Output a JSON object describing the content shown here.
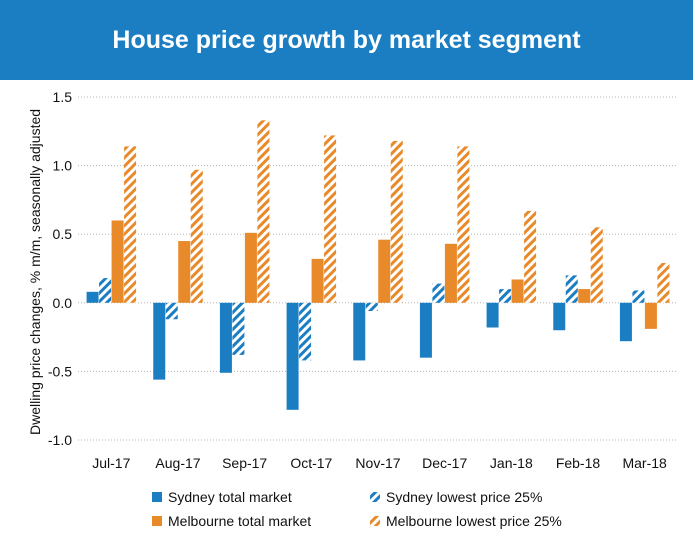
{
  "title": "House price growth by market segment",
  "colors": {
    "header_bg": "#1b7ec2",
    "sydney": "#1b7ec2",
    "melbourne": "#e8892a"
  },
  "chart_data": {
    "type": "bar",
    "title": "House price growth by market segment",
    "ylabel": "Dwelling price changes, % m/m, seasonally adjusted",
    "xlabel": "",
    "ylim": [
      -1.0,
      1.5
    ],
    "yticks": [
      "1.5",
      "1.0",
      "0.5",
      "0.0",
      "-0.5",
      "-1.0"
    ],
    "ytick_values": [
      1.5,
      1.0,
      0.5,
      0.0,
      -0.5,
      -1.0
    ],
    "grid": "horizontal dotted",
    "legend_position": "bottom",
    "categories": [
      "Jul-17",
      "Aug-17",
      "Sep-17",
      "Oct-17",
      "Nov-17",
      "Dec-17",
      "Jan-18",
      "Feb-18",
      "Mar-18"
    ],
    "series": [
      {
        "name": "Sydney total market",
        "style": "solid",
        "color": "#1b7ec2",
        "values": [
          0.08,
          -0.56,
          -0.51,
          -0.78,
          -0.42,
          -0.4,
          -0.18,
          -0.2,
          -0.28
        ]
      },
      {
        "name": "Sydney lowest price 25%",
        "style": "hatched",
        "color": "#1b7ec2",
        "values": [
          0.18,
          -0.12,
          -0.38,
          -0.42,
          -0.06,
          0.14,
          0.1,
          0.2,
          0.09
        ]
      },
      {
        "name": "Melbourne total market",
        "style": "solid",
        "color": "#e8892a",
        "values": [
          0.6,
          0.45,
          0.51,
          0.32,
          0.46,
          0.43,
          0.17,
          0.1,
          -0.19
        ]
      },
      {
        "name": "Melbourne lowest price 25%",
        "style": "hatched",
        "color": "#e8892a",
        "values": [
          1.14,
          0.97,
          1.33,
          1.22,
          1.18,
          1.14,
          0.67,
          0.55,
          0.29
        ]
      }
    ]
  }
}
